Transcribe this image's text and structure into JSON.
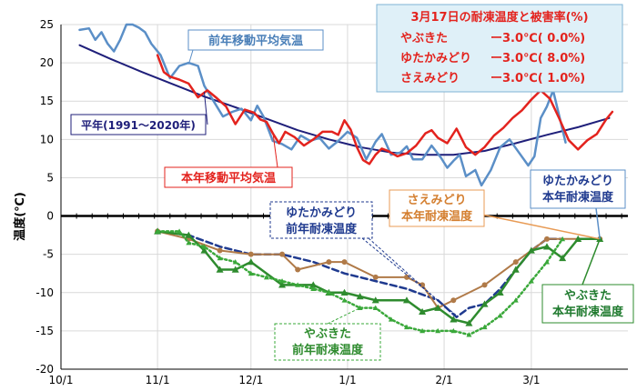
{
  "chart_data": {
    "type": "line",
    "ylabel": "温度(℃)",
    "ylim": [
      -20,
      25
    ],
    "yticks": [
      25,
      20,
      15,
      10,
      5,
      0,
      -5,
      -10,
      -15,
      -20
    ],
    "x_unit": "days since Oct 1",
    "xlim": [
      0,
      182
    ],
    "xticks": [
      {
        "label": "10/1",
        "day": 0
      },
      {
        "label": "11/1",
        "day": 31
      },
      {
        "label": "12/1",
        "day": 61
      },
      {
        "label": "1/1",
        "day": 92
      },
      {
        "label": "2/1",
        "day": 123
      },
      {
        "label": "3/1",
        "day": 151
      }
    ],
    "grid": true,
    "series": [
      {
        "name": "平年(1991～2020年)",
        "key": "normal",
        "color": "#1f1f7a",
        "points": [
          [
            6,
            22.3
          ],
          [
            16,
            20.5
          ],
          [
            26,
            18.8
          ],
          [
            36,
            17.2
          ],
          [
            46,
            15.6
          ],
          [
            56,
            14.2
          ],
          [
            66,
            12.7
          ],
          [
            76,
            11.2
          ],
          [
            86,
            10.0
          ],
          [
            96,
            9.0
          ],
          [
            106,
            8.3
          ],
          [
            116,
            8.0
          ],
          [
            126,
            8.0
          ],
          [
            136,
            8.5
          ],
          [
            146,
            9.5
          ],
          [
            156,
            10.6
          ],
          [
            166,
            11.6
          ],
          [
            176,
            12.8
          ]
        ]
      },
      {
        "name": "前年移動平均気温",
        "key": "prev_avg",
        "color": "#5b8fc7",
        "points": [
          [
            6,
            24.3
          ],
          [
            9,
            24.5
          ],
          [
            11,
            23
          ],
          [
            13,
            24
          ],
          [
            15,
            22.5
          ],
          [
            17,
            21.5
          ],
          [
            19,
            23
          ],
          [
            21,
            25
          ],
          [
            23,
            25
          ],
          [
            25,
            24.6
          ],
          [
            27,
            24
          ],
          [
            29,
            22.5
          ],
          [
            32,
            21
          ],
          [
            35,
            18
          ],
          [
            38,
            19.6
          ],
          [
            41,
            20
          ],
          [
            44,
            19.6
          ],
          [
            46,
            17
          ],
          [
            49,
            15
          ],
          [
            52,
            13
          ],
          [
            55,
            13.6
          ],
          [
            58,
            14
          ],
          [
            61,
            12.5
          ],
          [
            63,
            14.4
          ],
          [
            65,
            13
          ],
          [
            68,
            9.8
          ],
          [
            71,
            9.4
          ],
          [
            74,
            8.7
          ],
          [
            77,
            10.5
          ],
          [
            80,
            9.8
          ],
          [
            83,
            10.2
          ],
          [
            86,
            8.8
          ],
          [
            89,
            9.8
          ],
          [
            92,
            11
          ],
          [
            95,
            10.2
          ],
          [
            98,
            7.4
          ],
          [
            101,
            9.7
          ],
          [
            103,
            10.7
          ],
          [
            106,
            8.0
          ],
          [
            109,
            8.3
          ],
          [
            111,
            9.1
          ],
          [
            113,
            7.4
          ],
          [
            116,
            7.4
          ],
          [
            119,
            9.2
          ],
          [
            122,
            7.6
          ],
          [
            124,
            6.3
          ],
          [
            126,
            7.2
          ],
          [
            128,
            8.0
          ],
          [
            130,
            5.2
          ],
          [
            133,
            6.0
          ],
          [
            135,
            4.0
          ],
          [
            138,
            6.0
          ],
          [
            141,
            9.0
          ],
          [
            144,
            10.0
          ],
          [
            147,
            8.3
          ],
          [
            150,
            6.6
          ],
          [
            152,
            7.8
          ],
          [
            154,
            12.8
          ],
          [
            156,
            14.3
          ],
          [
            158,
            16.4
          ],
          [
            160,
            13.0
          ],
          [
            162,
            9.6
          ]
        ]
      },
      {
        "name": "本年移動平均気温",
        "key": "cur_avg",
        "color": "#e3231e",
        "points": [
          [
            31,
            21.0
          ],
          [
            33,
            18.8
          ],
          [
            35,
            18.2
          ],
          [
            38,
            17.8
          ],
          [
            41,
            17.3
          ],
          [
            44,
            15.5
          ],
          [
            47,
            16.4
          ],
          [
            50,
            15.4
          ],
          [
            53,
            14.3
          ],
          [
            56,
            12.0
          ],
          [
            59,
            13.9
          ],
          [
            62,
            13.5
          ],
          [
            64,
            12.6
          ],
          [
            66,
            12.3
          ],
          [
            68,
            10.8
          ],
          [
            70,
            9.5
          ],
          [
            72,
            11.0
          ],
          [
            75,
            10.3
          ],
          [
            78,
            9.2
          ],
          [
            81,
            10.0
          ],
          [
            84,
            11.0
          ],
          [
            87,
            11.0
          ],
          [
            89,
            10.6
          ],
          [
            91,
            12.5
          ],
          [
            93,
            11.3
          ],
          [
            95,
            9.0
          ],
          [
            97,
            7.3
          ],
          [
            99,
            6.8
          ],
          [
            101,
            8.0
          ],
          [
            103,
            8.8
          ],
          [
            105,
            8.5
          ],
          [
            108,
            7.8
          ],
          [
            111,
            8.2
          ],
          [
            114,
            9.2
          ],
          [
            117,
            10.8
          ],
          [
            119,
            11.2
          ],
          [
            121,
            10.2
          ],
          [
            124,
            9.5
          ],
          [
            127,
            11.4
          ],
          [
            130,
            9.0
          ],
          [
            133,
            8.0
          ],
          [
            136,
            9.0
          ],
          [
            139,
            10.5
          ],
          [
            142,
            11.5
          ],
          [
            145,
            12.8
          ],
          [
            148,
            13.8
          ],
          [
            151,
            15.2
          ],
          [
            154,
            16.4
          ],
          [
            157,
            15.3
          ],
          [
            160,
            12.7
          ],
          [
            163,
            9.9
          ],
          [
            166,
            8.7
          ],
          [
            169,
            9.9
          ],
          [
            172,
            10.7
          ],
          [
            175,
            12.6
          ],
          [
            177,
            13.6
          ]
        ]
      },
      {
        "name": "ゆたかみどり 前年耐凍温度",
        "key": "yutaka_prev",
        "color": "#1f3a8f",
        "style": "dashed",
        "points": [
          [
            31,
            -2.0
          ],
          [
            41,
            -2.5
          ],
          [
            51,
            -4.0
          ],
          [
            61,
            -5.0
          ],
          [
            71,
            -5.0
          ],
          [
            81,
            -6.0
          ],
          [
            91,
            -7.5
          ],
          [
            101,
            -8.5
          ],
          [
            111,
            -9.5
          ],
          [
            121,
            -11.0
          ],
          [
            127,
            -13.2
          ],
          [
            131,
            -12.0
          ],
          [
            136,
            -11.5
          ],
          [
            141,
            -9.5
          ],
          [
            146,
            -7.0
          ],
          [
            151,
            -4.5
          ],
          [
            156,
            -3.0
          ],
          [
            161,
            -3.0
          ]
        ]
      },
      {
        "name": "さえみどり 本年耐凍温度",
        "key": "saemidori_cur",
        "color": "#b07a48",
        "style": "solid",
        "marker": "circle",
        "points": [
          [
            31,
            -2.0
          ],
          [
            41,
            -3.0
          ],
          [
            51,
            -4.5
          ],
          [
            61,
            -5.0
          ],
          [
            71,
            -5.0
          ],
          [
            76,
            -7.0
          ],
          [
            86,
            -6.0
          ],
          [
            91,
            -6.0
          ],
          [
            101,
            -8.0
          ],
          [
            111,
            -8.0
          ],
          [
            116,
            -9.0
          ],
          [
            121,
            -12.0
          ],
          [
            126,
            -11.0
          ],
          [
            136,
            -9.0
          ],
          [
            146,
            -6.0
          ],
          [
            156,
            -3.0
          ],
          [
            173,
            -3.0
          ]
        ]
      },
      {
        "name": "やぶきた 本年耐凍温度",
        "key": "yabukita_cur",
        "color": "#2e8b2e",
        "style": "solid",
        "marker": "triangle",
        "points": [
          [
            31,
            -2.0
          ],
          [
            41,
            -2.5
          ],
          [
            46,
            -4.5
          ],
          [
            51,
            -7.0
          ],
          [
            56,
            -7.0
          ],
          [
            61,
            -6.0
          ],
          [
            71,
            -9.0
          ],
          [
            81,
            -9.0
          ],
          [
            86,
            -10.0
          ],
          [
            91,
            -10.0
          ],
          [
            96,
            -10.5
          ],
          [
            101,
            -11.0
          ],
          [
            111,
            -11.0
          ],
          [
            116,
            -12.5
          ],
          [
            121,
            -12.0
          ],
          [
            126,
            -13.5
          ],
          [
            131,
            -14.0
          ],
          [
            136,
            -11.5
          ],
          [
            141,
            -10.0
          ],
          [
            146,
            -7.0
          ],
          [
            151,
            -4.5
          ],
          [
            156,
            -4.0
          ],
          [
            161,
            -5.5
          ],
          [
            166,
            -3.0
          ],
          [
            173,
            -3.0
          ]
        ]
      },
      {
        "name": "やぶきた 前年耐凍温度",
        "key": "yabukita_prev",
        "color": "#3aa83a",
        "style": "dotted",
        "marker": "triangle",
        "points": [
          [
            31,
            -2.0
          ],
          [
            38,
            -2.0
          ],
          [
            41,
            -3.5
          ],
          [
            46,
            -4.0
          ],
          [
            51,
            -5.5
          ],
          [
            56,
            -6.0
          ],
          [
            61,
            -7.5
          ],
          [
            66,
            -8.0
          ],
          [
            71,
            -8.5
          ],
          [
            76,
            -9.0
          ],
          [
            81,
            -9.5
          ],
          [
            86,
            -10.0
          ],
          [
            91,
            -11.0
          ],
          [
            96,
            -12.0
          ],
          [
            101,
            -12.0
          ],
          [
            106,
            -13.5
          ],
          [
            111,
            -14.5
          ],
          [
            116,
            -15.0
          ],
          [
            121,
            -15.0
          ],
          [
            126,
            -15.0
          ],
          [
            131,
            -15.5
          ],
          [
            136,
            -14.5
          ],
          [
            141,
            -13.0
          ],
          [
            146,
            -11.0
          ],
          [
            151,
            -8.5
          ],
          [
            156,
            -6.0
          ],
          [
            161,
            -3.0
          ]
        ]
      }
    ],
    "labels": {
      "prev_avg": "前年移動平均気温",
      "normal": "平年(1991～2020年)",
      "cur_avg": "本年移動平均気温",
      "yutaka_prev_1": "ゆたかみどり",
      "yutaka_prev_2": "前年耐凍温度",
      "saemidori_1": "さえみどり",
      "saemidori_2": "本年耐凍温度",
      "yutaka_cur_1": "ゆたかみどり",
      "yutaka_cur_2": "本年耐凍温度",
      "yabukita_cur_1": "やぶきた",
      "yabukita_cur_2": "本年耐凍温度",
      "yabukita_prev_1": "やぶきた",
      "yabukita_prev_2": "前年耐凍温度"
    },
    "info_box": {
      "title": "3月17日の耐凍温度と被害率(%)",
      "rows": [
        {
          "variety": "やぶきた",
          "value": "ー3.0℃(  0.0%)"
        },
        {
          "variety": "ゆたかみどり",
          "value": "ー3.0℃(  8.0%)"
        },
        {
          "variety": "さえみどり",
          "value": "ー3.0℃(  1.0%)"
        }
      ]
    }
  }
}
